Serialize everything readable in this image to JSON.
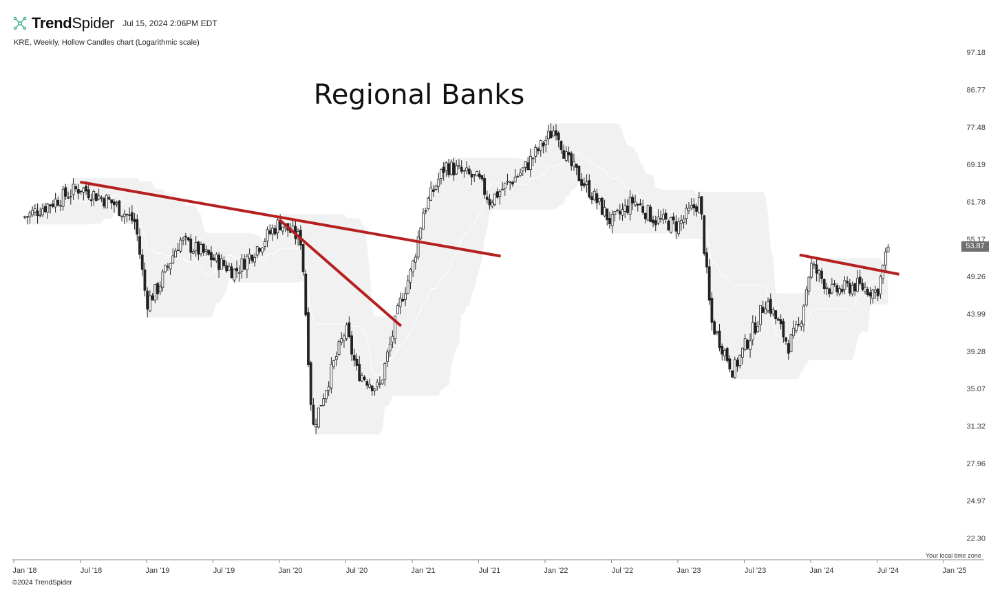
{
  "header": {
    "brand_bold": "Trend",
    "brand_light": "Spider",
    "timestamp": "Jul 15, 2024 2:06PM EDT"
  },
  "subtitle": "KRE, Weekly, Hollow Candles chart (Logarithmic scale)",
  "footer": {
    "copyright": "©2024 TrendSpider",
    "timezone": "Your local time zone"
  },
  "price_badge": "53.87",
  "colors": {
    "trendline": "#b51f1f",
    "band_fill": "#f1f1f1",
    "candle": "#222222",
    "badge": "#6f6f6f"
  },
  "chart_data": {
    "type": "candlestick",
    "title": "Regional Banks",
    "symbol": "KRE",
    "interval": "Weekly",
    "scale": "log",
    "y_ticks": [
      97.18,
      86.77,
      77.48,
      69.19,
      61.78,
      55.17,
      49.26,
      43.99,
      39.28,
      35.07,
      31.32,
      27.96,
      24.97,
      22.3
    ],
    "ylim": [
      21.5,
      100.5
    ],
    "x_ticks": [
      "Jan '18",
      "Jul '18",
      "Jan '19",
      "Jul '19",
      "Jan '20",
      "Jul '20",
      "Jan '21",
      "Jul '21",
      "Jan '22",
      "Jul '22",
      "Jan '23",
      "Jul '23",
      "Jan '24",
      "Jul '24",
      "Jan '25"
    ],
    "xlim": [
      "Jan '18",
      "Jan '25"
    ],
    "close_path": [
      [
        "Jan '18",
        59.0
      ],
      [
        "Jun '18",
        64.5
      ],
      [
        "Sep '18",
        61.5
      ],
      [
        "Nov '18",
        58.0
      ],
      [
        "Dec '18",
        45.5
      ],
      [
        "Jan '19",
        47.5
      ],
      [
        "Mar '19",
        55.0
      ],
      [
        "Jun '19",
        52.0
      ],
      [
        "Aug '19",
        50.0
      ],
      [
        "Dec '19",
        58.0
      ],
      [
        "Feb '20",
        55.0
      ],
      [
        "Mar '20",
        31.0
      ],
      [
        "Apr '20",
        34.5
      ],
      [
        "Jun '20",
        42.0
      ],
      [
        "Jul '20",
        37.0
      ],
      [
        "Sep '20",
        35.0
      ],
      [
        "Oct '20",
        40.0
      ],
      [
        "Nov '20",
        46.0
      ],
      [
        "Dec '20",
        50.5
      ],
      [
        "Jan '21",
        60.0
      ],
      [
        "Mar '21",
        69.0
      ],
      [
        "Jun '21",
        66.0
      ],
      [
        "Jul '21",
        62.0
      ],
      [
        "Oct '21",
        68.0
      ],
      [
        "Jan '22",
        77.5
      ],
      [
        "Feb '22",
        70.0
      ],
      [
        "Apr '22",
        64.0
      ],
      [
        "Jun '22",
        58.0
      ],
      [
        "Aug '22",
        62.0
      ],
      [
        "Oct '22",
        58.5
      ],
      [
        "Dec '22",
        57.5
      ],
      [
        "Feb '23",
        62.0
      ],
      [
        "Mar '23",
        43.0
      ],
      [
        "May '23",
        37.0
      ],
      [
        "Jul '23",
        42.5
      ],
      [
        "Aug '23",
        46.0
      ],
      [
        "Oct '23",
        40.0
      ],
      [
        "Nov '23",
        42.5
      ],
      [
        "Dec '23",
        51.0
      ],
      [
        "Feb '24",
        47.0
      ],
      [
        "Apr '24",
        48.0
      ],
      [
        "Jun '24",
        47.0
      ],
      [
        "Jul '24",
        53.87
      ]
    ],
    "last_price": 53.87,
    "annotations": {
      "trendlines": [
        {
          "from": [
            "Jun '18",
            65.6
          ],
          "to": [
            "Aug '21",
            52.4
          ]
        },
        {
          "from": [
            "Dec '19",
            58.5
          ],
          "to": [
            "Nov '20",
            42.4
          ]
        },
        {
          "from": [
            "Nov '23",
            52.6
          ],
          "to": [
            "Aug '24",
            49.6
          ]
        }
      ],
      "range_band": "shaded channel (light grey) with midline"
    }
  }
}
